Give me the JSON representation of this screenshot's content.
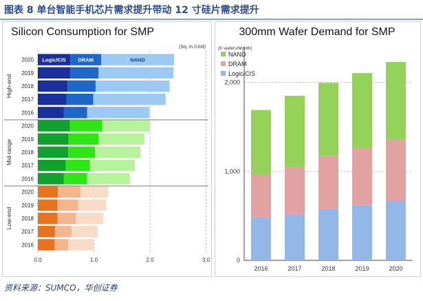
{
  "figure": {
    "title": "图表  8    单台智能手机芯片需求提升带动 12 寸硅片需求提升",
    "source": "资料来源：SUMCO，华创证券"
  },
  "chart_data": [
    {
      "type": "bar",
      "orientation": "horizontal",
      "stacked": true,
      "title": "Silicon Consumption for SMP",
      "unit": "(Sq. in./Unit)",
      "xlim": [
        0,
        3.0
      ],
      "xticks": [
        "0.0",
        "1.0",
        "2.0",
        "3.0"
      ],
      "grid": true,
      "groups": [
        {
          "name": "High-end",
          "years": [
            "2020",
            "2019",
            "2018",
            "2017",
            "2016"
          ],
          "series": [
            {
              "name": "Logic/CIS",
              "values": [
                0.58,
                0.58,
                0.53,
                0.51,
                0.46
              ],
              "color": "#1b2f9a"
            },
            {
              "name": "DRAM",
              "values": [
                0.55,
                0.5,
                0.5,
                0.48,
                0.42
              ],
              "color": "#1e66c8"
            },
            {
              "name": "NAND",
              "values": [
                1.3,
                1.34,
                1.32,
                1.29,
                1.11
              ],
              "color": "#9ccaf2"
            }
          ]
        },
        {
          "name": "Mid-range",
          "years": [
            "2020",
            "2019",
            "2018",
            "2017",
            "2016"
          ],
          "series": [
            {
              "name": "Logic/CIS",
              "values": [
                0.57,
                0.55,
                0.54,
                0.5,
                0.46
              ],
              "color": "#10a12f"
            },
            {
              "name": "DRAM",
              "values": [
                0.58,
                0.53,
                0.48,
                0.43,
                0.42
              ],
              "color": "#2ee614"
            },
            {
              "name": "NAND",
              "values": [
                0.84,
                0.82,
                0.81,
                0.8,
                0.76
              ],
              "color": "#b7f29c"
            }
          ]
        },
        {
          "name": "Low-end",
          "years": [
            "2020",
            "2019",
            "2018",
            "2017",
            "2016"
          ],
          "series": [
            {
              "name": "Logic/CIS",
              "values": [
                0.36,
                0.35,
                0.35,
                0.31,
                0.3
              ],
              "color": "#e8731e"
            },
            {
              "name": "DRAM",
              "values": [
                0.4,
                0.37,
                0.33,
                0.29,
                0.24
              ],
              "color": "#f3b68e"
            },
            {
              "name": "NAND",
              "values": [
                0.5,
                0.5,
                0.49,
                0.47,
                0.45
              ],
              "color": "#f9dcc7"
            }
          ]
        }
      ],
      "inline_labels": [
        "Logic/CIS",
        "DRAM",
        "NAND"
      ]
    },
    {
      "type": "bar",
      "stacked": true,
      "title": "300mm Wafer Demand for SMP",
      "unit": "(K wafers/Month)",
      "categories": [
        "2016",
        "2017",
        "2018",
        "2019",
        "2020"
      ],
      "ylim": [
        0,
        2400
      ],
      "yticks": [
        "0",
        "1,000",
        "2,000"
      ],
      "grid": true,
      "legend_position": "top-left",
      "series": [
        {
          "name": "Logic/CIS",
          "values": [
            485,
            520,
            575,
            625,
            670
          ],
          "color": "#93b7e6"
        },
        {
          "name": "DRAM",
          "values": [
            475,
            530,
            600,
            640,
            690
          ],
          "color": "#e3a2a2"
        },
        {
          "name": "NAND",
          "values": [
            730,
            800,
            820,
            840,
            870
          ],
          "color": "#95d25a"
        }
      ]
    }
  ]
}
